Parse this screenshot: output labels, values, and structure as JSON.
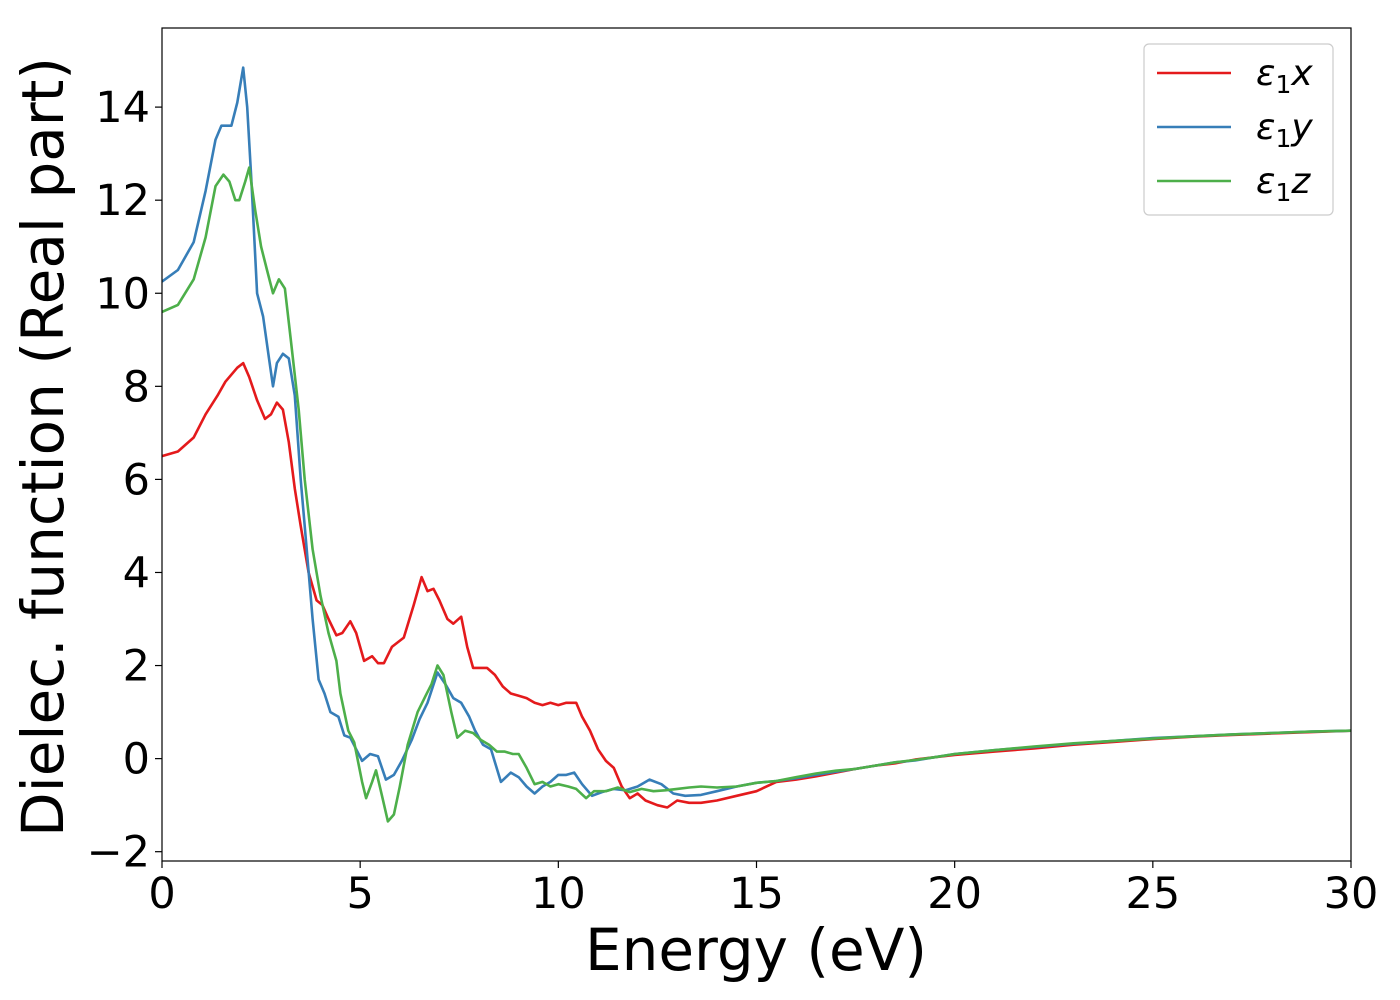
{
  "chart_data": {
    "type": "line",
    "title": "",
    "xlabel": "Energy (eV)",
    "ylabel": "Dielec. function (Real part)",
    "xlim": [
      0,
      30
    ],
    "ylim": [
      -2.2,
      15.7
    ],
    "xticks": [
      0,
      5,
      10,
      15,
      20,
      25,
      30
    ],
    "xtick_labels": [
      "0",
      "5",
      "10",
      "15",
      "20",
      "25",
      "30"
    ],
    "yticks": [
      -2,
      0,
      2,
      4,
      6,
      8,
      10,
      12,
      14
    ],
    "ytick_labels": [
      "−2",
      "0",
      "2",
      "4",
      "6",
      "8",
      "10",
      "12",
      "14"
    ],
    "grid": false,
    "legend_position": "top-right",
    "series": [
      {
        "name": "ε₁x",
        "legend_base": "ε",
        "legend_sub": "1",
        "legend_suffix": "x",
        "color": "#e41a1c",
        "points": [
          [
            0,
            6.5
          ],
          [
            0.4,
            6.6
          ],
          [
            0.8,
            6.9
          ],
          [
            1.1,
            7.4
          ],
          [
            1.4,
            7.8
          ],
          [
            1.6,
            8.1
          ],
          [
            1.9,
            8.4
          ],
          [
            2.05,
            8.5
          ],
          [
            2.2,
            8.2
          ],
          [
            2.4,
            7.7
          ],
          [
            2.6,
            7.3
          ],
          [
            2.75,
            7.4
          ],
          [
            2.9,
            7.65
          ],
          [
            3.05,
            7.5
          ],
          [
            3.2,
            6.8
          ],
          [
            3.35,
            5.8
          ],
          [
            3.5,
            5.0
          ],
          [
            3.7,
            4.0
          ],
          [
            3.9,
            3.4
          ],
          [
            4.05,
            3.3
          ],
          [
            4.2,
            3.0
          ],
          [
            4.4,
            2.65
          ],
          [
            4.55,
            2.7
          ],
          [
            4.75,
            2.95
          ],
          [
            4.9,
            2.7
          ],
          [
            5.1,
            2.1
          ],
          [
            5.3,
            2.2
          ],
          [
            5.45,
            2.05
          ],
          [
            5.6,
            2.05
          ],
          [
            5.8,
            2.4
          ],
          [
            6.1,
            2.6
          ],
          [
            6.35,
            3.3
          ],
          [
            6.55,
            3.9
          ],
          [
            6.7,
            3.6
          ],
          [
            6.85,
            3.65
          ],
          [
            7.0,
            3.4
          ],
          [
            7.2,
            3.0
          ],
          [
            7.35,
            2.9
          ],
          [
            7.55,
            3.05
          ],
          [
            7.7,
            2.4
          ],
          [
            7.85,
            1.95
          ],
          [
            8.0,
            1.95
          ],
          [
            8.2,
            1.95
          ],
          [
            8.4,
            1.8
          ],
          [
            8.6,
            1.55
          ],
          [
            8.8,
            1.4
          ],
          [
            9.0,
            1.35
          ],
          [
            9.2,
            1.3
          ],
          [
            9.4,
            1.2
          ],
          [
            9.6,
            1.15
          ],
          [
            9.8,
            1.2
          ],
          [
            10.0,
            1.15
          ],
          [
            10.2,
            1.2
          ],
          [
            10.45,
            1.2
          ],
          [
            10.6,
            0.9
          ],
          [
            10.8,
            0.6
          ],
          [
            11.0,
            0.2
          ],
          [
            11.2,
            -0.05
          ],
          [
            11.4,
            -0.2
          ],
          [
            11.6,
            -0.6
          ],
          [
            11.8,
            -0.85
          ],
          [
            12.0,
            -0.75
          ],
          [
            12.2,
            -0.9
          ],
          [
            12.5,
            -1.0
          ],
          [
            12.75,
            -1.05
          ],
          [
            13.0,
            -0.9
          ],
          [
            13.3,
            -0.95
          ],
          [
            13.6,
            -0.95
          ],
          [
            14.0,
            -0.9
          ],
          [
            14.5,
            -0.8
          ],
          [
            15.0,
            -0.7
          ],
          [
            15.5,
            -0.5
          ],
          [
            16.0,
            -0.45
          ],
          [
            16.5,
            -0.38
          ],
          [
            17.0,
            -0.3
          ],
          [
            17.5,
            -0.22
          ],
          [
            18.0,
            -0.15
          ],
          [
            18.5,
            -0.1
          ],
          [
            19.0,
            -0.02
          ],
          [
            19.5,
            0.03
          ],
          [
            20.0,
            0.08
          ],
          [
            21.0,
            0.15
          ],
          [
            22.0,
            0.22
          ],
          [
            23.0,
            0.3
          ],
          [
            24.0,
            0.36
          ],
          [
            25.0,
            0.42
          ],
          [
            26.0,
            0.47
          ],
          [
            27.0,
            0.51
          ],
          [
            28.0,
            0.54
          ],
          [
            29.0,
            0.57
          ],
          [
            30.0,
            0.6
          ]
        ]
      },
      {
        "name": "ε₁y",
        "legend_base": "ε",
        "legend_sub": "1",
        "legend_suffix": "y",
        "color": "#377eb8",
        "points": [
          [
            0,
            10.25
          ],
          [
            0.4,
            10.5
          ],
          [
            0.8,
            11.1
          ],
          [
            1.1,
            12.2
          ],
          [
            1.35,
            13.3
          ],
          [
            1.5,
            13.6
          ],
          [
            1.75,
            13.6
          ],
          [
            1.9,
            14.1
          ],
          [
            2.05,
            14.85
          ],
          [
            2.15,
            14.0
          ],
          [
            2.25,
            12.5
          ],
          [
            2.4,
            10.0
          ],
          [
            2.55,
            9.5
          ],
          [
            2.7,
            8.6
          ],
          [
            2.8,
            8.0
          ],
          [
            2.9,
            8.5
          ],
          [
            3.05,
            8.7
          ],
          [
            3.2,
            8.6
          ],
          [
            3.35,
            7.8
          ],
          [
            3.5,
            6.0
          ],
          [
            3.65,
            4.5
          ],
          [
            3.8,
            3.0
          ],
          [
            3.95,
            1.7
          ],
          [
            4.1,
            1.4
          ],
          [
            4.25,
            1.0
          ],
          [
            4.45,
            0.9
          ],
          [
            4.6,
            0.5
          ],
          [
            4.75,
            0.45
          ],
          [
            4.9,
            0.2
          ],
          [
            5.05,
            -0.05
          ],
          [
            5.25,
            0.1
          ],
          [
            5.45,
            0.05
          ],
          [
            5.65,
            -0.45
          ],
          [
            5.85,
            -0.35
          ],
          [
            6.05,
            -0.05
          ],
          [
            6.3,
            0.4
          ],
          [
            6.5,
            0.85
          ],
          [
            6.7,
            1.2
          ],
          [
            6.95,
            1.85
          ],
          [
            7.15,
            1.6
          ],
          [
            7.35,
            1.3
          ],
          [
            7.55,
            1.2
          ],
          [
            7.75,
            0.9
          ],
          [
            7.9,
            0.6
          ],
          [
            8.1,
            0.3
          ],
          [
            8.3,
            0.2
          ],
          [
            8.55,
            -0.5
          ],
          [
            8.8,
            -0.3
          ],
          [
            9.0,
            -0.4
          ],
          [
            9.2,
            -0.6
          ],
          [
            9.4,
            -0.75
          ],
          [
            9.6,
            -0.6
          ],
          [
            9.8,
            -0.5
          ],
          [
            10.0,
            -0.35
          ],
          [
            10.2,
            -0.35
          ],
          [
            10.4,
            -0.3
          ],
          [
            10.6,
            -0.55
          ],
          [
            10.85,
            -0.8
          ],
          [
            11.1,
            -0.72
          ],
          [
            11.4,
            -0.65
          ],
          [
            11.7,
            -0.68
          ],
          [
            12.0,
            -0.6
          ],
          [
            12.3,
            -0.45
          ],
          [
            12.6,
            -0.55
          ],
          [
            12.9,
            -0.75
          ],
          [
            13.2,
            -0.8
          ],
          [
            13.6,
            -0.78
          ],
          [
            14.0,
            -0.7
          ],
          [
            14.5,
            -0.6
          ],
          [
            15.0,
            -0.52
          ],
          [
            15.5,
            -0.48
          ],
          [
            16.0,
            -0.42
          ],
          [
            16.5,
            -0.35
          ],
          [
            17.0,
            -0.28
          ],
          [
            17.5,
            -0.22
          ],
          [
            18.0,
            -0.15
          ],
          [
            18.5,
            -0.08
          ],
          [
            19.0,
            -0.04
          ],
          [
            19.5,
            0.03
          ],
          [
            20.0,
            0.1
          ],
          [
            21.0,
            0.18
          ],
          [
            22.0,
            0.25
          ],
          [
            23.0,
            0.32
          ],
          [
            24.0,
            0.38
          ],
          [
            25.0,
            0.44
          ],
          [
            26.0,
            0.48
          ],
          [
            27.0,
            0.52
          ],
          [
            28.0,
            0.55
          ],
          [
            29.0,
            0.58
          ],
          [
            30.0,
            0.6
          ]
        ]
      },
      {
        "name": "ε₁z",
        "legend_base": "ε",
        "legend_sub": "1",
        "legend_suffix": "z",
        "color": "#4daf4a",
        "points": [
          [
            0,
            9.6
          ],
          [
            0.4,
            9.75
          ],
          [
            0.8,
            10.3
          ],
          [
            1.1,
            11.2
          ],
          [
            1.35,
            12.3
          ],
          [
            1.55,
            12.55
          ],
          [
            1.7,
            12.4
          ],
          [
            1.85,
            12.0
          ],
          [
            1.95,
            12.0
          ],
          [
            2.1,
            12.4
          ],
          [
            2.2,
            12.7
          ],
          [
            2.35,
            11.8
          ],
          [
            2.5,
            11.0
          ],
          [
            2.65,
            10.5
          ],
          [
            2.8,
            10.0
          ],
          [
            2.95,
            10.3
          ],
          [
            3.1,
            10.1
          ],
          [
            3.25,
            9.0
          ],
          [
            3.45,
            7.5
          ],
          [
            3.6,
            6.0
          ],
          [
            3.8,
            4.5
          ],
          [
            4.0,
            3.5
          ],
          [
            4.2,
            2.7
          ],
          [
            4.4,
            2.1
          ],
          [
            4.5,
            1.4
          ],
          [
            4.7,
            0.6
          ],
          [
            4.85,
            0.35
          ],
          [
            5.05,
            -0.5
          ],
          [
            5.15,
            -0.85
          ],
          [
            5.3,
            -0.5
          ],
          [
            5.4,
            -0.25
          ],
          [
            5.55,
            -0.8
          ],
          [
            5.7,
            -1.35
          ],
          [
            5.85,
            -1.2
          ],
          [
            6.0,
            -0.6
          ],
          [
            6.2,
            0.3
          ],
          [
            6.45,
            1.0
          ],
          [
            6.65,
            1.35
          ],
          [
            6.8,
            1.6
          ],
          [
            6.95,
            2.0
          ],
          [
            7.1,
            1.8
          ],
          [
            7.3,
            1.0
          ],
          [
            7.45,
            0.45
          ],
          [
            7.65,
            0.6
          ],
          [
            7.85,
            0.55
          ],
          [
            8.05,
            0.4
          ],
          [
            8.25,
            0.3
          ],
          [
            8.45,
            0.15
          ],
          [
            8.65,
            0.15
          ],
          [
            8.85,
            0.1
          ],
          [
            9.0,
            0.1
          ],
          [
            9.2,
            -0.2
          ],
          [
            9.4,
            -0.55
          ],
          [
            9.6,
            -0.5
          ],
          [
            9.8,
            -0.6
          ],
          [
            10.0,
            -0.55
          ],
          [
            10.25,
            -0.6
          ],
          [
            10.45,
            -0.65
          ],
          [
            10.7,
            -0.85
          ],
          [
            10.9,
            -0.7
          ],
          [
            11.2,
            -0.7
          ],
          [
            11.5,
            -0.62
          ],
          [
            11.8,
            -0.72
          ],
          [
            12.1,
            -0.65
          ],
          [
            12.4,
            -0.7
          ],
          [
            12.7,
            -0.68
          ],
          [
            13.0,
            -0.65
          ],
          [
            13.3,
            -0.62
          ],
          [
            13.6,
            -0.6
          ],
          [
            14.0,
            -0.62
          ],
          [
            14.5,
            -0.6
          ],
          [
            15.0,
            -0.52
          ],
          [
            15.5,
            -0.48
          ],
          [
            16.0,
            -0.4
          ],
          [
            16.5,
            -0.32
          ],
          [
            17.0,
            -0.26
          ],
          [
            17.5,
            -0.22
          ],
          [
            18.0,
            -0.15
          ],
          [
            18.5,
            -0.08
          ],
          [
            19.0,
            -0.03
          ],
          [
            19.5,
            0.03
          ],
          [
            20.0,
            0.1
          ],
          [
            21.0,
            0.18
          ],
          [
            22.0,
            0.26
          ],
          [
            23.0,
            0.33
          ],
          [
            24.0,
            0.38
          ],
          [
            25.0,
            0.43
          ],
          [
            26.0,
            0.48
          ],
          [
            27.0,
            0.52
          ],
          [
            28.0,
            0.55
          ],
          [
            29.0,
            0.58
          ],
          [
            30.0,
            0.6
          ]
        ]
      }
    ]
  }
}
